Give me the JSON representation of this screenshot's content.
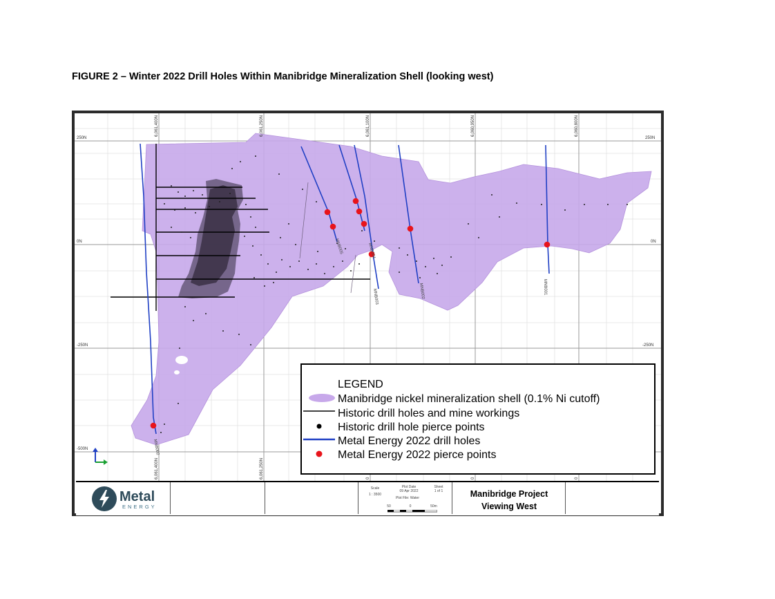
{
  "figure_title": "FIGURE 2 – Winter 2022 Drill Holes Within Manibridge Mineralization Shell (looking west)",
  "map": {
    "elevation_labels_left": [
      "250N",
      "0N",
      "-250N",
      "-500N"
    ],
    "elevation_labels_right": [
      "250N",
      "0N",
      "-250N"
    ],
    "top_coordinate_labels": [
      "6,061,400N",
      "6,061,250N",
      "6,061,100N",
      "6,060,950N",
      "6,060,800N"
    ],
    "bottom_coordinate_labels": [
      "6,061,400N",
      "6,061,250N",
      "0",
      "0",
      "0"
    ],
    "hole_labels": [
      "MNB002",
      "MNB005",
      "MNB004",
      "MNB003",
      "MNB002",
      "MNB001"
    ]
  },
  "legend": {
    "title": "LEGEND",
    "items": [
      {
        "label": "Manibridge nickel mineralization shell (0.1% Ni cutoff)",
        "symbol": "shell-swatch",
        "color": "#c7a8ea"
      },
      {
        "label": "Historic drill holes and mine workings",
        "symbol": "black-line",
        "color": "#000000"
      },
      {
        "label": "Historic drill hole pierce points",
        "symbol": "black-dot",
        "color": "#000000"
      },
      {
        "label": "Metal Energy 2022 drill holes",
        "symbol": "blue-line",
        "color": "#1f3fc4"
      },
      {
        "label": "Metal Energy 2022 pierce points",
        "symbol": "red-dot",
        "color": "#e8141b"
      }
    ]
  },
  "title_block": {
    "company_word": "Metal",
    "company_sub": "ENERGY",
    "scale_label": "Scale",
    "scale_value": "1 : 3500",
    "plot_date_label": "Plot Date",
    "plot_date_value": "09 Apr 2022",
    "sheet_label": "Sheet",
    "sheet_value": "1 of 1",
    "plot_file_label": "Plot File: Water",
    "bar_labels": [
      "50",
      "0",
      "50m"
    ],
    "project_line1": "Manibridge Project",
    "project_line2": "Viewing West"
  },
  "colors": {
    "shell": "#c7a8ea",
    "drill_2022": "#1f3fc4",
    "pierce_2022": "#e8141b",
    "historic": "#000000",
    "logo_circle": "#2e4b5a"
  }
}
